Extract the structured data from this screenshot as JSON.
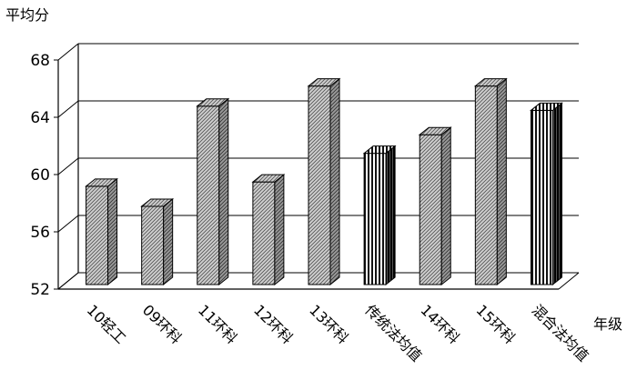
{
  "chart_data": {
    "type": "bar",
    "title": "",
    "ylabel": "平均分",
    "xlabel": "年级",
    "categories": [
      "10轻工",
      "09环科",
      "11环科",
      "12环科",
      "13环科",
      "传统法均值",
      "14环科",
      "15环科",
      "混合法均值"
    ],
    "values": [
      58.8,
      57.4,
      64.4,
      59.1,
      65.8,
      61.1,
      62.4,
      65.8,
      64.1
    ],
    "styles": [
      "hatch",
      "hatch",
      "hatch",
      "hatch",
      "hatch",
      "vertical",
      "hatch",
      "hatch",
      "vertical"
    ],
    "ylim": [
      52,
      68
    ],
    "yticks": [
      "52",
      "56",
      "60",
      "64",
      "68"
    ],
    "grid": true
  }
}
